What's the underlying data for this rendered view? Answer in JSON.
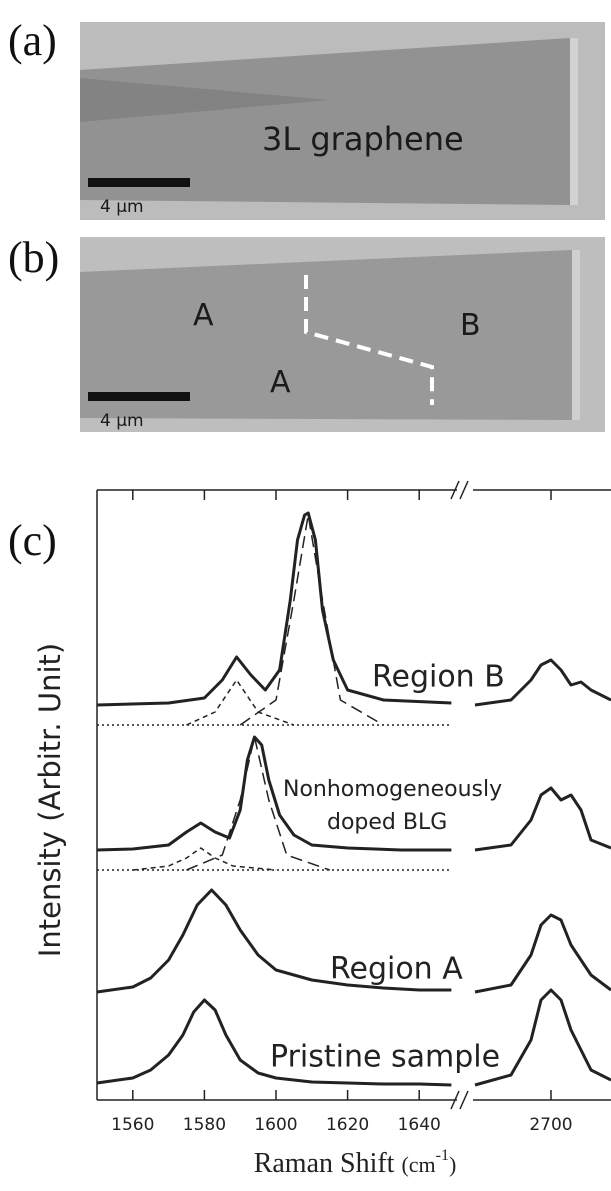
{
  "panels": {
    "a": {
      "label": "(a)",
      "text": "3L graphene",
      "scale_bar": "4 µm"
    },
    "b": {
      "label": "(b)",
      "regions": [
        "A",
        "A",
        "B"
      ],
      "scale_bar": "4 µm"
    }
  },
  "chart_data": {
    "type": "line",
    "panel_label": "(c)",
    "xlabel": [
      "Raman Shift ",
      "(cm",
      "-1",
      ")"
    ],
    "ylabel": "Intensity (Arbitr. Unit)",
    "xlim": [
      1550,
      1650
    ],
    "x2lim": [
      2662,
      2730
    ],
    "ylim": [
      0,
      61
    ],
    "xticks": [
      1560,
      1580,
      1600,
      1620,
      1640
    ],
    "x2ticks": [
      2700
    ],
    "broken_x_axis": true,
    "annotations": [
      "Region B",
      "Nonhomogeneously",
      "doped BLG",
      "Region A",
      "Pristine sample"
    ],
    "series": [
      {
        "color": "#222",
        "dash": "solid",
        "x": [
          1550,
          1560,
          1565,
          1570,
          1574,
          1577,
          1580,
          1583,
          1586,
          1590,
          1595,
          1600,
          1610,
          1620,
          1630,
          1640,
          1649,
          null,
          2662,
          2680,
          2690,
          2695,
          2700,
          2705,
          2710,
          2720,
          2730
        ],
        "values": [
          1.7,
          2.2,
          3.0,
          4.5,
          6.5,
          8.8,
          10.0,
          9.0,
          6.5,
          4.0,
          2.7,
          2.2,
          1.8,
          1.7,
          1.6,
          1.6,
          1.5,
          null,
          1.5,
          2.5,
          6.0,
          10.0,
          11.0,
          10.0,
          7.0,
          3.0,
          2.0
        ]
      },
      {
        "color": "#222",
        "dash": "solid",
        "x": [
          1550,
          1560,
          1565,
          1570,
          1574,
          1578,
          1582,
          1586,
          1590,
          1595,
          1600,
          1610,
          1620,
          1630,
          1640,
          1649,
          null,
          2662,
          2680,
          2690,
          2695,
          2700,
          2705,
          2710,
          2720,
          2730
        ],
        "values": [
          10.8,
          11.3,
          12.2,
          14.0,
          16.5,
          19.5,
          21.0,
          19.5,
          17.0,
          14.5,
          13.0,
          12.0,
          11.5,
          11.2,
          11.0,
          11.0,
          null,
          10.8,
          11.5,
          14.5,
          17.5,
          18.5,
          18.0,
          15.5,
          12.5,
          11.0
        ]
      },
      {
        "color": "#222",
        "dash": "solid",
        "x": [
          1550,
          1560,
          1570,
          1575,
          1579,
          1583,
          1587,
          1590,
          1592,
          1594,
          1596,
          1598,
          1601,
          1605,
          1610,
          1620,
          1635,
          1649,
          null,
          2662,
          2680,
          2690,
          2695,
          2700,
          2705,
          2710,
          2715,
          2720,
          2730
        ],
        "values": [
          25.0,
          25.1,
          25.5,
          26.8,
          27.7,
          26.8,
          26.2,
          29.0,
          34.0,
          36.3,
          35.5,
          32.0,
          28.5,
          26.5,
          25.5,
          25.2,
          25.0,
          25.0,
          null,
          25.0,
          25.5,
          28.0,
          30.5,
          31.2,
          30.0,
          30.5,
          29.0,
          26.0,
          25.2
        ]
      },
      {
        "color": "#222",
        "dash": "dotted",
        "x": [
          1550,
          1649
        ],
        "values": [
          23.0,
          23.0
        ]
      },
      {
        "color": "#222",
        "dash": "dashed",
        "x": [
          1560,
          1570,
          1575,
          1579,
          1583,
          1588,
          1600
        ],
        "values": [
          23.0,
          23.4,
          24.2,
          25.2,
          24.2,
          23.4,
          23.0
        ]
      },
      {
        "color": "#222",
        "dash": "longdash",
        "x": [
          1575,
          1585,
          1590,
          1594,
          1598,
          1603,
          1615
        ],
        "values": [
          23.0,
          24.5,
          30.0,
          36.3,
          30.0,
          24.5,
          23.0
        ]
      },
      {
        "color": "#222",
        "dash": "solid",
        "x": [
          1550,
          1570,
          1580,
          1585,
          1589,
          1593,
          1597,
          1601,
          1604,
          1606,
          1608,
          1609,
          1611,
          1613,
          1616,
          1620,
          1630,
          1649,
          null,
          2662,
          2680,
          2690,
          2695,
          2700,
          2705,
          2710,
          2715,
          2720,
          2730
        ],
        "values": [
          39.5,
          39.7,
          40.2,
          42.0,
          44.3,
          42.5,
          41.0,
          43.0,
          50.0,
          56.0,
          58.5,
          58.7,
          56.0,
          49.0,
          44.0,
          41.0,
          40.0,
          39.7,
          null,
          39.5,
          40.0,
          42.0,
          43.5,
          44.0,
          43.0,
          41.5,
          41.8,
          41.0,
          40.0
        ]
      },
      {
        "color": "#222",
        "dash": "dotted",
        "x": [
          1550,
          1649
        ],
        "values": [
          37.5,
          37.5
        ]
      },
      {
        "color": "#222",
        "dash": "dashed",
        "x": [
          1575,
          1583,
          1589,
          1595,
          1605
        ],
        "values": [
          37.5,
          38.8,
          42.0,
          38.8,
          37.5
        ]
      },
      {
        "color": "#222",
        "dash": "longdash",
        "x": [
          1590,
          1600,
          1605,
          1609,
          1613,
          1618,
          1630
        ],
        "values": [
          37.5,
          40.0,
          50.0,
          58.5,
          50.0,
          40.0,
          37.5
        ]
      }
    ]
  }
}
